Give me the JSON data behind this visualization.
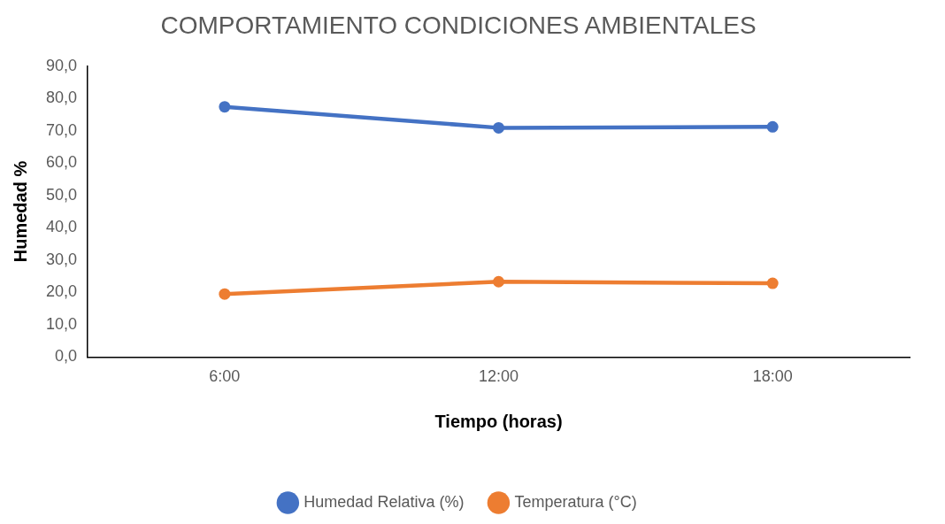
{
  "chart_data": {
    "type": "line",
    "title": "COMPORTAMIENTO CONDICIONES AMBIENTALES",
    "xlabel": "Tiempo (horas)",
    "ylabel": "Humedad %",
    "categories": [
      "6:00",
      "12:00",
      "18:00"
    ],
    "series": [
      {
        "name": "Humedad Relativa (%)",
        "color": "#4472c4",
        "values": [
          77.4,
          70.9,
          71.2
        ]
      },
      {
        "name": "Temperatura (°C)",
        "color": "#ed7d31",
        "values": [
          19.5,
          23.3,
          22.8
        ]
      }
    ],
    "ylim": [
      0,
      90
    ],
    "yticks": [
      {
        "value": 0,
        "label": "0,0"
      },
      {
        "value": 10,
        "label": "10,0"
      },
      {
        "value": 20,
        "label": "20,0"
      },
      {
        "value": 30,
        "label": "30,0"
      },
      {
        "value": 40,
        "label": "40,0"
      },
      {
        "value": 50,
        "label": "50,0"
      },
      {
        "value": 60,
        "label": "60,0"
      },
      {
        "value": 70,
        "label": "70,0"
      },
      {
        "value": 80,
        "label": "80,0"
      },
      {
        "value": 90,
        "label": "90,0"
      }
    ],
    "grid": false,
    "legend": "bottom",
    "marker": "circle",
    "line_style": "solid"
  }
}
